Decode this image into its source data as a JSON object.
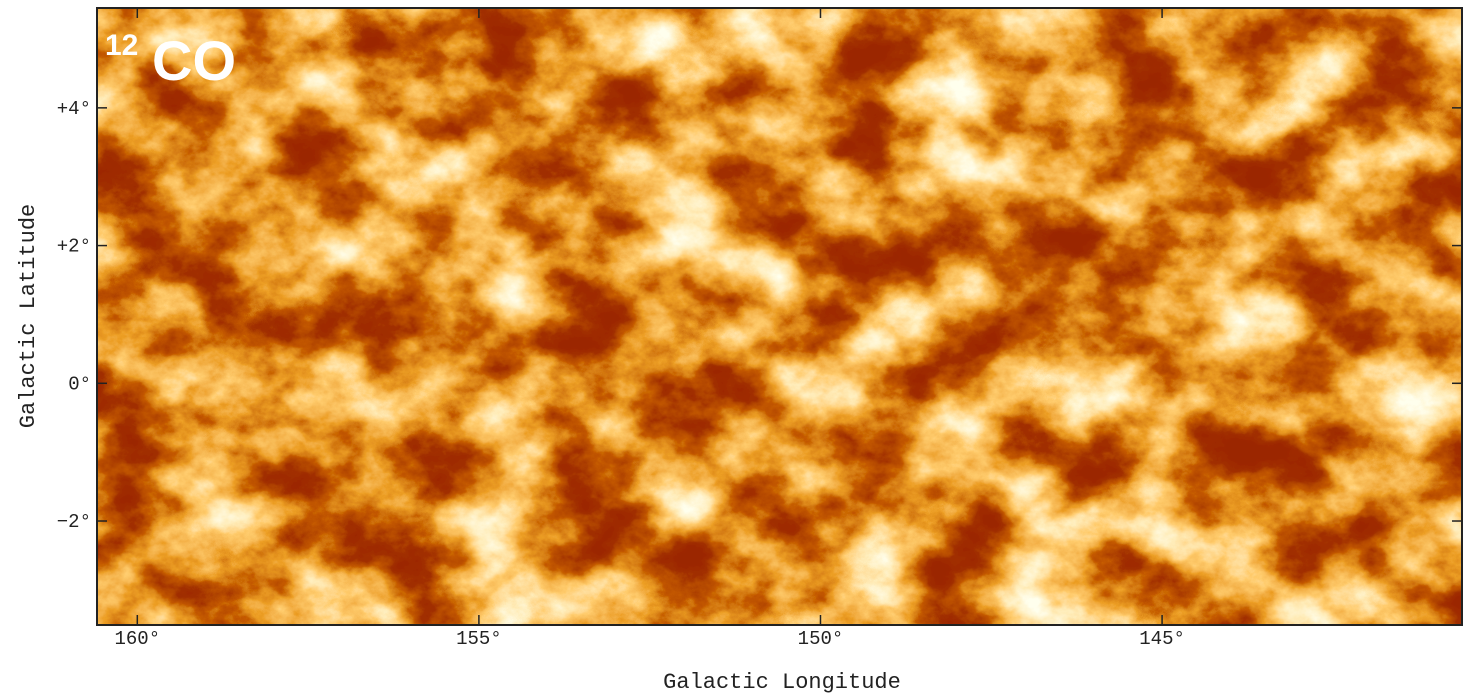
{
  "chart_data": {
    "type": "image",
    "title_sup": "12",
    "title": "CO",
    "xlabel": "Galactic Longitude",
    "ylabel": "Galactic Latitude",
    "xlim": [
      160.59,
      140.61
    ],
    "ylim": [
      -3.51,
      5.45
    ],
    "xticks": [
      {
        "value": 160,
        "label": "160°"
      },
      {
        "value": 155,
        "label": "155°"
      },
      {
        "value": 150,
        "label": "150°"
      },
      {
        "value": 145,
        "label": "145°"
      }
    ],
    "yticks": [
      {
        "value": 4,
        "label": "+4°"
      },
      {
        "value": 2,
        "label": "+2°"
      },
      {
        "value": 0,
        "label": "0°"
      },
      {
        "value": -2,
        "label": "−2°"
      }
    ],
    "background_color": "#5a0800"
  }
}
